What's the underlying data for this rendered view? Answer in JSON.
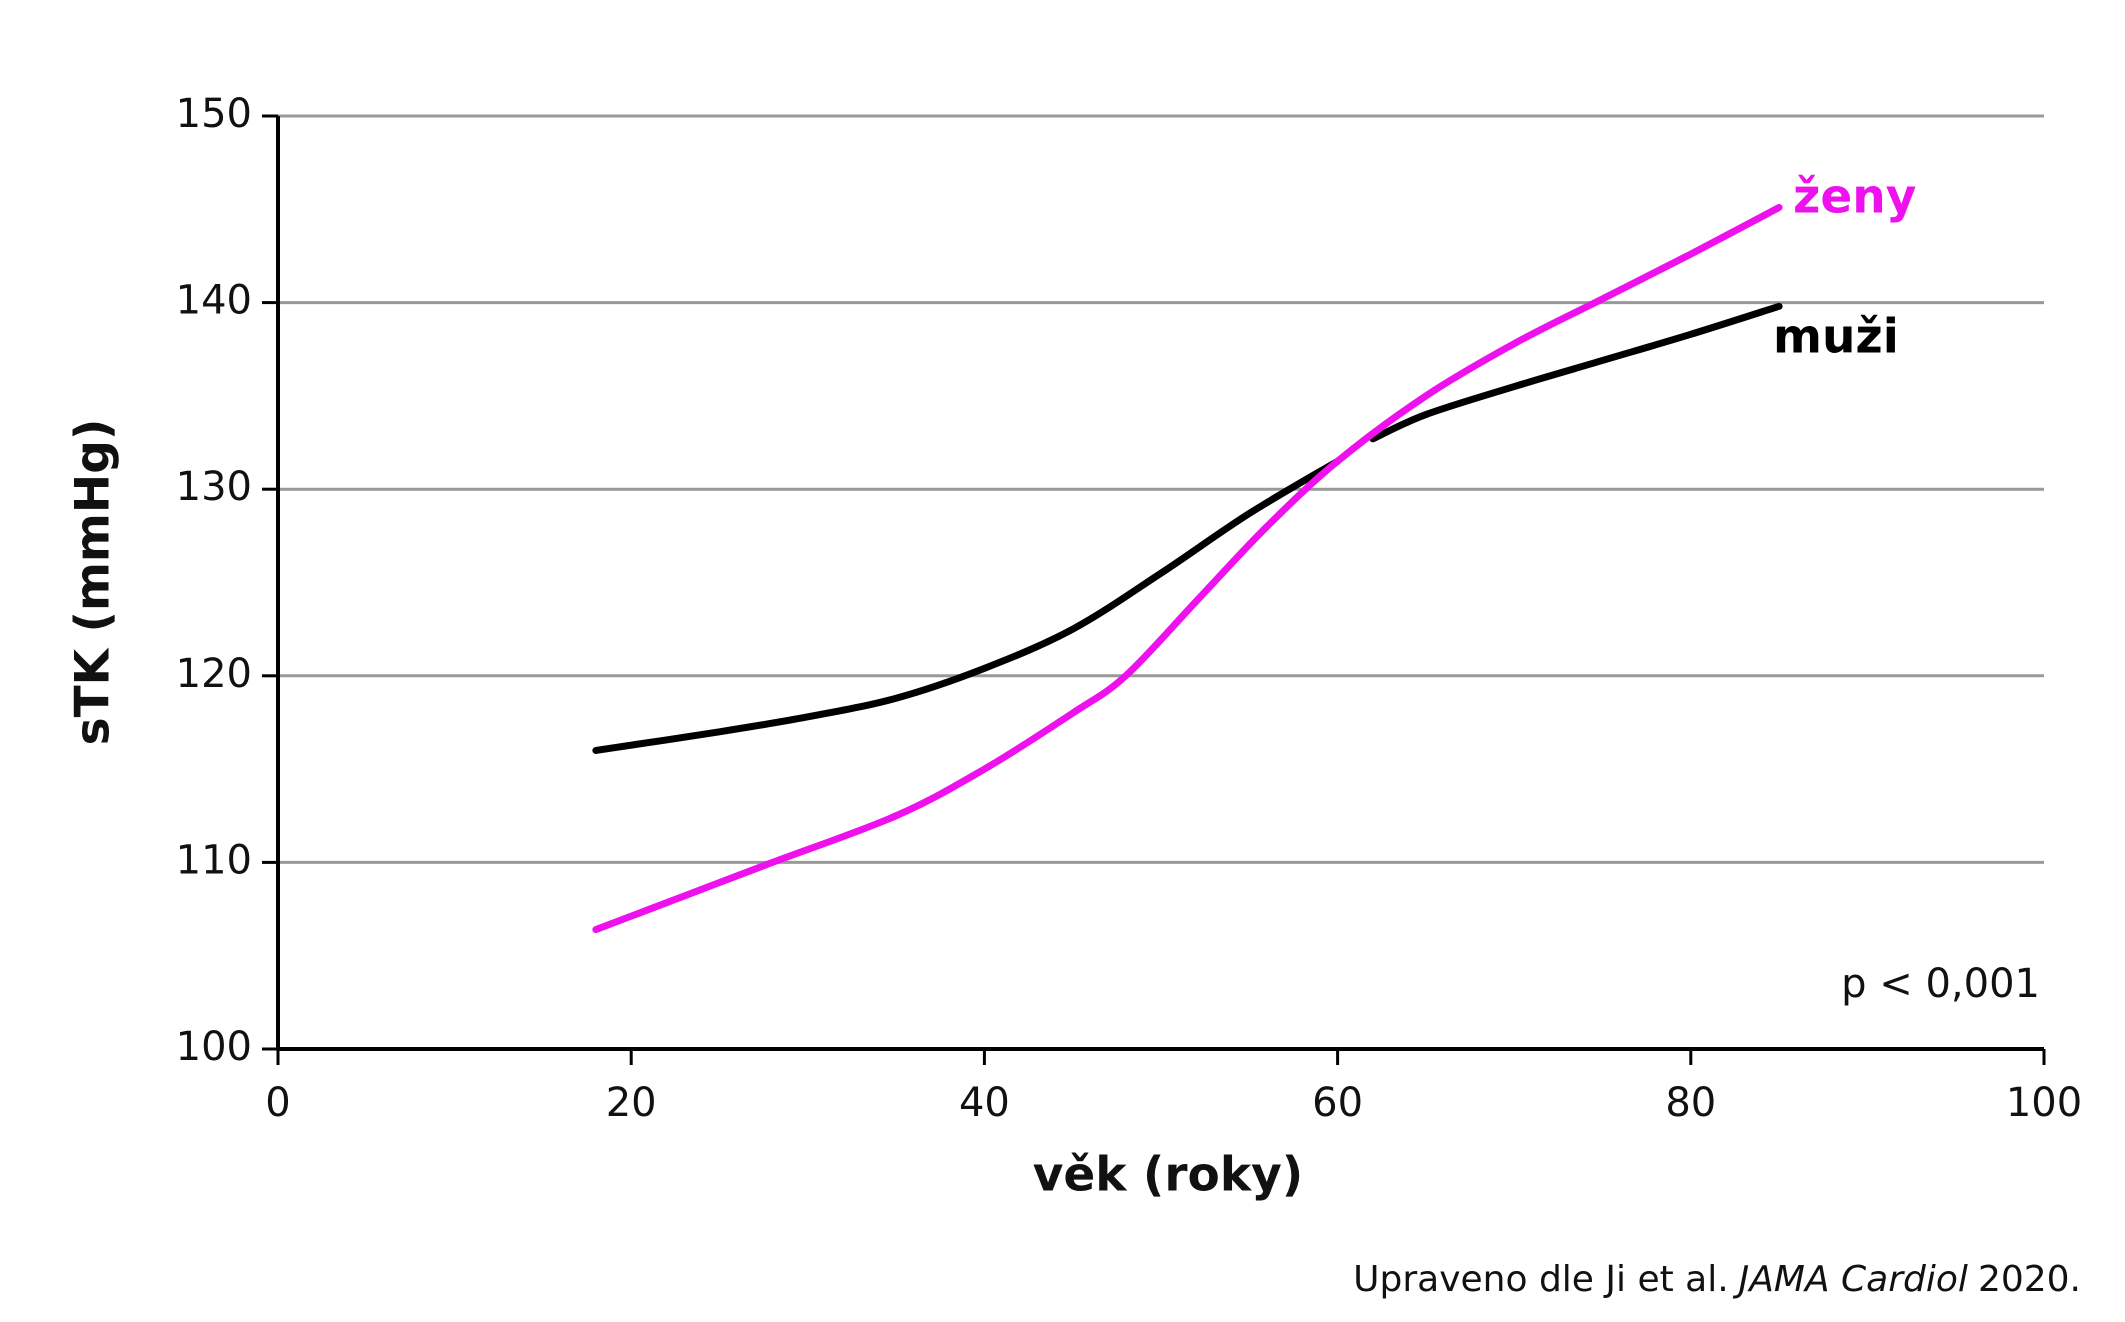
{
  "chart_data": {
    "type": "line",
    "x_label": "věk (roky)",
    "y_label": "sTK (mmHg)",
    "annotation": "p < 0,001",
    "source": {
      "prefix": "Upraveno dle Ji et al.",
      "journal": "JAMA Cardiol",
      "suffix": "2020."
    },
    "xlim": [
      0,
      100
    ],
    "xticks": [
      0,
      20,
      40,
      60,
      80,
      100
    ],
    "ylim": [
      100,
      150
    ],
    "yticks": [
      100,
      110,
      120,
      130,
      140,
      150
    ],
    "grid": true,
    "series": [
      {
        "name": "muži",
        "color": "#000000",
        "x": [
          18,
          25,
          30,
          35,
          40,
          45,
          50,
          55,
          60,
          61,
          62,
          65,
          70,
          75,
          80,
          85
        ],
        "values": [
          116,
          117,
          117.8,
          118.8,
          120.4,
          122.5,
          125.5,
          128.7,
          131.5,
          null,
          132.7,
          134,
          135.5,
          136.9,
          138.3,
          139.8
        ]
      },
      {
        "name": "ženy",
        "color": "#ee11ee",
        "x": [
          18,
          23,
          28,
          35,
          40,
          45,
          48,
          52,
          56,
          60,
          65,
          70,
          75,
          80,
          85
        ],
        "values": [
          106.4,
          108.2,
          110,
          112.5,
          115,
          118,
          120,
          124,
          128,
          131.5,
          135,
          137.8,
          140.2,
          142.6,
          145.1
        ]
      }
    ]
  }
}
